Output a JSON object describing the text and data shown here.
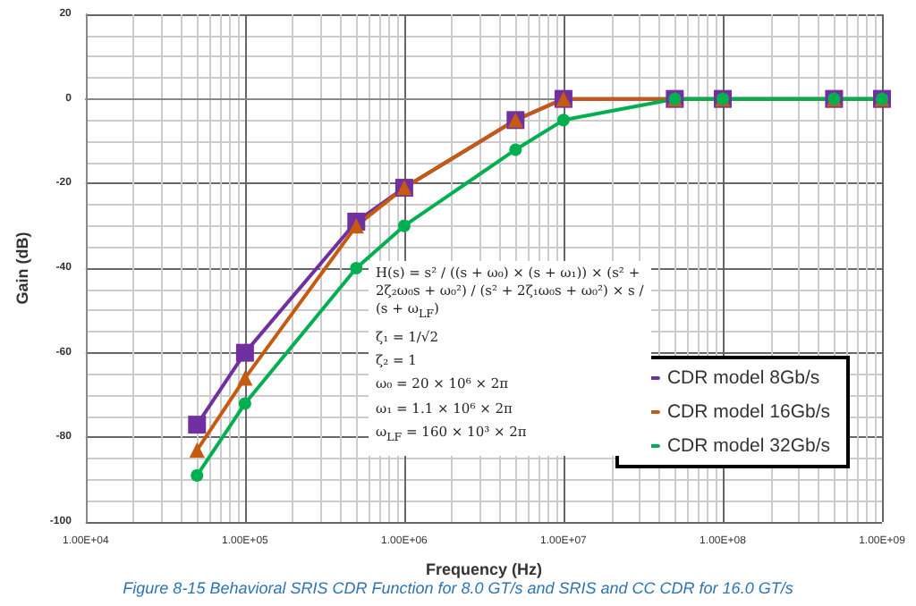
{
  "chart_data": {
    "type": "line",
    "xlabel": "Frequency (Hz)",
    "ylabel": "Gain (dB)",
    "x": [
      50000,
      100000,
      500000,
      1000000,
      5000000,
      10000000,
      50000000,
      100000000,
      500000000,
      1000000000
    ],
    "series": [
      {
        "name": "CDR model 8Gb/s",
        "color": "#7030a0",
        "marker": "square",
        "values": [
          -77,
          -60,
          -29,
          -21,
          -5,
          0,
          0,
          0,
          0,
          0
        ]
      },
      {
        "name": "CDR model 16Gb/s",
        "color": "#c55a11",
        "marker": "triangle",
        "values": [
          -83,
          -66,
          -30,
          -21,
          -5,
          0,
          0,
          0,
          0,
          0
        ]
      },
      {
        "name": "CDR model 32Gb/s",
        "color": "#00b050",
        "marker": "circle",
        "values": [
          -89,
          -72,
          -40,
          -30,
          -12,
          -5,
          0,
          0,
          0,
          0
        ]
      }
    ],
    "log": "x",
    "xlim": [
      10000,
      1000000000
    ],
    "xticks": [
      {
        "value": 10000,
        "label": "1.00E+04"
      },
      {
        "value": 100000,
        "label": "1.00E+05"
      },
      {
        "value": 1000000,
        "label": "1.00E+06"
      },
      {
        "value": 10000000,
        "label": "1.00E+07"
      },
      {
        "value": 100000000,
        "label": "1.00E+08"
      },
      {
        "value": 1000000000,
        "label": "1.00E+09"
      }
    ],
    "ylim": [
      -100,
      20
    ],
    "yticks": [
      -100,
      -80,
      -60,
      -40,
      -20,
      0,
      20
    ],
    "grid": true,
    "legend": "bottom right",
    "line_style": "solid",
    "annotations": [
      "H(s) = s² / ((s + ω₀) × (s + ω₁)) × (s² + 2ζ₂ω₀s + ω₀²) / (s² + 2ζ₁ω₀s + ω₀²) × s / (s + ω$_{LF}$)",
      "ζ₁ = 1/√2",
      "ζ₂ = 1",
      "ω₀ = 20 × 10⁶ × 2π",
      "ω₁ = 1.1 × 10⁶ × 2π",
      "ω$_{LF}$ = 160 × 10³ × 2π",
      "Figure  8-15  Behavioral SRIS CDR Function for 8.0 GT/s and SRIS and CC CDR for 16.0 GT/s"
    ]
  }
}
